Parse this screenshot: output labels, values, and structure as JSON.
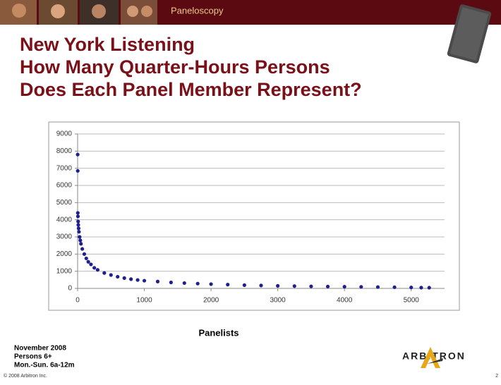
{
  "header": {
    "product": "Paneloscopy"
  },
  "chart_data": {
    "type": "scatter",
    "title_lines": [
      "New York Listening",
      "How Many Quarter-Hours Persons",
      "Does Each Panel Member Represent?"
    ],
    "x_label": "Panelists",
    "color": "#1f1f8f",
    "x": [
      1,
      2,
      3,
      5,
      8,
      10,
      15,
      20,
      30,
      40,
      50,
      70,
      100,
      130,
      160,
      200,
      250,
      300,
      400,
      500,
      600,
      700,
      800,
      900,
      1000,
      1200,
      1400,
      1600,
      1800,
      2000,
      2250,
      2500,
      2750,
      3000,
      3250,
      3500,
      3750,
      4000,
      4250,
      4500,
      4750,
      5000,
      5150,
      5270
    ],
    "values": [
      7800,
      6850,
      4400,
      4200,
      3900,
      3700,
      3500,
      3300,
      3000,
      2800,
      2600,
      2300,
      2000,
      1750,
      1550,
      1400,
      1200,
      1080,
      900,
      780,
      680,
      600,
      540,
      490,
      450,
      400,
      350,
      310,
      280,
      250,
      220,
      190,
      170,
      150,
      135,
      120,
      110,
      100,
      90,
      80,
      70,
      55,
      45,
      40
    ],
    "xlim": [
      0,
      5500
    ],
    "xticks": [
      0,
      1000,
      2000,
      3000,
      4000,
      5000
    ],
    "ylim": [
      0,
      9000
    ],
    "yticks": [
      0,
      1000,
      2000,
      3000,
      4000,
      5000,
      6000,
      7000,
      8000,
      9000
    ],
    "grid": true
  },
  "footer": {
    "notes": [
      "November 2008",
      "Persons 6+",
      "Mon.-Sun. 6a-12m"
    ],
    "brand": "ARBITRON",
    "copyright": "© 2008 Arbitron Inc.",
    "page": "2"
  }
}
